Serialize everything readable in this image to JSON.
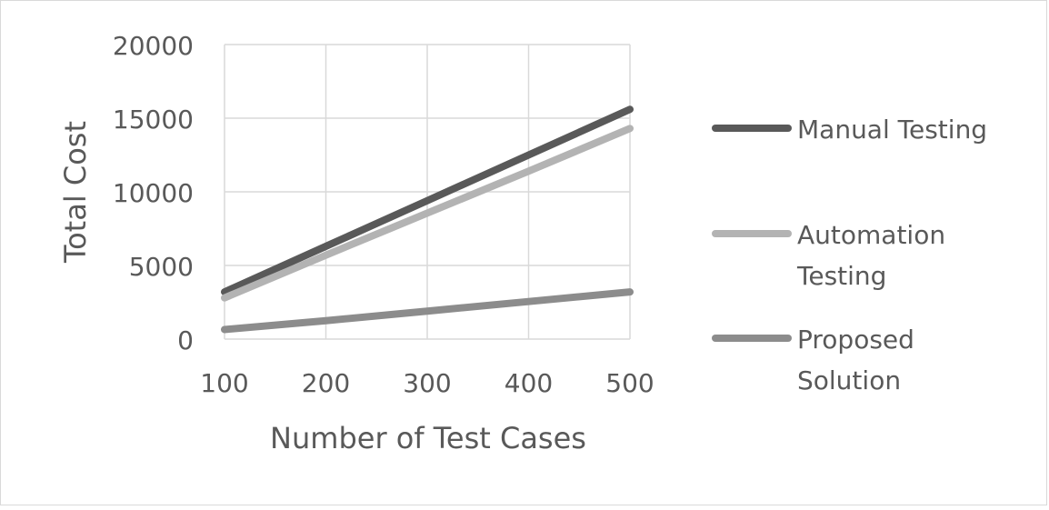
{
  "chart_data": {
    "type": "line",
    "title": "",
    "xlabel": "Number of Test Cases",
    "ylabel": "Total Cost",
    "x": [
      100,
      200,
      300,
      400,
      500
    ],
    "x_ticks": [
      "100",
      "200",
      "300",
      "400",
      "500"
    ],
    "y_ticks": [
      "0",
      "5000",
      "10000",
      "15000",
      "20000"
    ],
    "xlim": [
      100,
      500
    ],
    "ylim": [
      0,
      20000
    ],
    "grid": true,
    "legend_position": "right",
    "series": [
      {
        "name": "Manual Testing",
        "legend_lines": [
          "Manual Testing"
        ],
        "values": [
          3200,
          6300,
          9400,
          12500,
          15600
        ],
        "color": "#595959"
      },
      {
        "name": "Automation Testing",
        "legend_lines": [
          "Automation",
          "Testing"
        ],
        "values": [
          2800,
          5700,
          8550,
          11400,
          14300
        ],
        "color": "#b3b3b3"
      },
      {
        "name": "Proposed Solution",
        "legend_lines": [
          "Proposed",
          "Solution"
        ],
        "values": [
          650,
          1250,
          1900,
          2550,
          3200
        ],
        "color": "#8c8c8c"
      }
    ]
  }
}
